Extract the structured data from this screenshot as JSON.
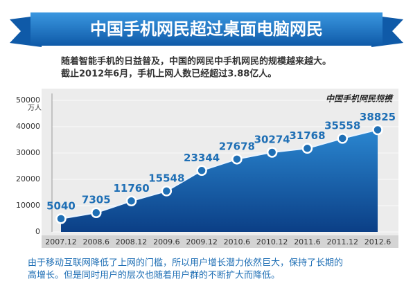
{
  "chart_data": {
    "type": "area",
    "banner": "中国手机网民超过桌面电脑网民",
    "subtitle_lines": [
      "随着智能手机的日益普及，中国的网民中手机网民的规模越来越大。",
      "截止2012年6月，手机上网人数已经超过3.88亿人。"
    ],
    "title": "中国手机网民规模",
    "y_unit": "万人",
    "categories": [
      "2007.12",
      "2008.6",
      "2008.12",
      "2009.6",
      "2009.12",
      "2010.6",
      "2010.12",
      "2011.6",
      "2011.12",
      "2012.6"
    ],
    "values": [
      5040,
      7305,
      11760,
      15548,
      23344,
      27678,
      30274,
      31768,
      35558,
      38825
    ],
    "color": "#1f6fb5",
    "ylim": [
      0,
      50000
    ],
    "yticks": [
      0,
      10000,
      20000,
      30000,
      40000,
      50000
    ],
    "grid": true,
    "annotation_lines": [
      "由于移动互联网降低了上网的门槛，所以用户增长潜力依然巨大，保持了长期的",
      "高增长。但是同时用户的层次也随着用户群的不断扩大而降低。"
    ]
  }
}
